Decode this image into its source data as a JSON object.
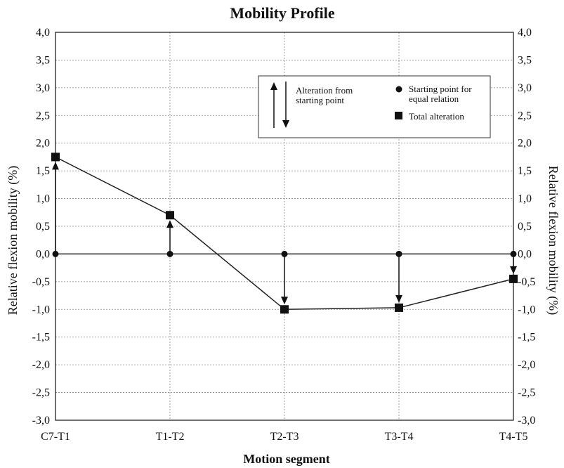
{
  "chart_data": {
    "type": "line",
    "title": "Mobility Profile",
    "xlabel": "Motion segment",
    "ylabel": "Relative flexion mobility (%)",
    "ylabel_right": "Relative flexion mobility (%)",
    "categories": [
      "C7-T1",
      "T1-T2",
      "T2-T3",
      "T3-T4",
      "T4-T5"
    ],
    "ylim": [
      -3.0,
      4.0
    ],
    "y_ticks": [
      "4,0",
      "3,5",
      "3,0",
      "2,5",
      "2,0",
      "1,5",
      "1,0",
      "0,5",
      "0,0",
      "-0,5",
      "-1,0",
      "-1,5",
      "-2,0",
      "-2,5",
      "-3,0"
    ],
    "grid": true,
    "series": [
      {
        "name": "Starting point for equal relation",
        "values": [
          0.0,
          0.0,
          0.0,
          0.0,
          0.0
        ],
        "marker": "circle"
      },
      {
        "name": "Total alteration",
        "values": [
          1.75,
          0.7,
          -1.0,
          -0.97,
          -0.45
        ],
        "marker": "square"
      }
    ],
    "legend": {
      "placement": "top-right",
      "arrow_label": "Alteration from starting point",
      "circle_label": "Starting point for equal relation",
      "square_label": "Total alteration"
    }
  }
}
